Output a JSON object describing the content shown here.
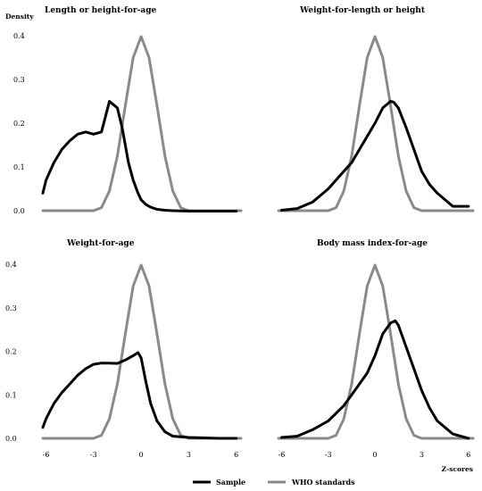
{
  "figure": {
    "density_label": "Density",
    "xaxis_label": "Z-scores"
  },
  "legend": [
    {
      "name": "Sample",
      "color": "#000000"
    },
    {
      "name": "WHO standards",
      "color": "#8a8a8a"
    }
  ],
  "chart_data": [
    {
      "type": "line",
      "title": "Length or height-for-age",
      "yticks": [
        "0.4",
        "0.3",
        "0.2",
        "0.1",
        "0.0"
      ],
      "xticks": [],
      "ylim": [
        0,
        0.4
      ],
      "xlim": [
        -6.2,
        6.3
      ],
      "series": [
        {
          "name": "Sample",
          "color": "#000000",
          "x": [
            -6.2,
            -6.0,
            -5.5,
            -5.0,
            -4.5,
            -4.0,
            -3.5,
            -3.0,
            -2.5,
            -2.0,
            -1.5,
            -1.2,
            -1.0,
            -0.8,
            -0.5,
            -0.2,
            0.0,
            0.3,
            0.6,
            1.0,
            1.5,
            2.0,
            3.0,
            4.0,
            5.0,
            6.0
          ],
          "y": [
            0.04,
            0.07,
            0.11,
            0.14,
            0.16,
            0.175,
            0.18,
            0.175,
            0.18,
            0.25,
            0.235,
            0.19,
            0.15,
            0.11,
            0.07,
            0.04,
            0.025,
            0.014,
            0.008,
            0.003,
            0.001,
            0.0,
            -0.001,
            -0.001,
            -0.001,
            -0.001
          ]
        },
        {
          "name": "WHO standards",
          "color": "#8a8a8a",
          "x": [
            -6.2,
            -3.0,
            -2.5,
            -2.0,
            -1.5,
            -1.0,
            -0.5,
            0.0,
            0.5,
            1.0,
            1.5,
            2.0,
            2.5,
            3.0,
            6.3
          ],
          "y": [
            0.0,
            0.0,
            0.007,
            0.045,
            0.125,
            0.24,
            0.35,
            0.398,
            0.35,
            0.24,
            0.125,
            0.045,
            0.007,
            0.0,
            0.0
          ]
        }
      ]
    },
    {
      "type": "line",
      "title": "Weight-for-length or height",
      "yticks": [],
      "xticks": [],
      "ylim": [
        0,
        0.4
      ],
      "xlim": [
        -6.2,
        6.3
      ],
      "series": [
        {
          "name": "Sample",
          "color": "#000000",
          "x": [
            -6.0,
            -5.0,
            -4.0,
            -3.0,
            -2.0,
            -1.5,
            -1.0,
            -0.5,
            0.0,
            0.5,
            1.0,
            1.2,
            1.5,
            2.0,
            2.5,
            3.0,
            3.5,
            4.0,
            5.0,
            6.0
          ],
          "y": [
            0.001,
            0.005,
            0.02,
            0.05,
            0.09,
            0.11,
            0.14,
            0.17,
            0.2,
            0.235,
            0.25,
            0.248,
            0.235,
            0.19,
            0.14,
            0.09,
            0.06,
            0.04,
            0.01,
            0.01
          ]
        },
        {
          "name": "WHO standards",
          "color": "#8a8a8a",
          "x": [
            -6.2,
            -3.0,
            -2.5,
            -2.0,
            -1.5,
            -1.0,
            -0.5,
            0.0,
            0.5,
            1.0,
            1.5,
            2.0,
            2.5,
            3.0,
            6.3
          ],
          "y": [
            0.0,
            0.0,
            0.007,
            0.045,
            0.125,
            0.24,
            0.35,
            0.398,
            0.35,
            0.24,
            0.125,
            0.045,
            0.007,
            0.0,
            0.0
          ]
        }
      ]
    },
    {
      "type": "line",
      "title": "Weight-for-age",
      "yticks": [
        "0.4",
        "0.3",
        "0.2",
        "0.1",
        "0.0"
      ],
      "xticks": [
        "-6",
        "-3",
        "0",
        "3",
        "6"
      ],
      "ylim": [
        0,
        0.4
      ],
      "xlim": [
        -6.2,
        6.3
      ],
      "series": [
        {
          "name": "Sample",
          "color": "#000000",
          "x": [
            -6.2,
            -6.0,
            -5.5,
            -5.0,
            -4.5,
            -4.0,
            -3.5,
            -3.0,
            -2.5,
            -2.0,
            -1.5,
            -1.0,
            -0.5,
            -0.2,
            0.0,
            0.3,
            0.6,
            1.0,
            1.5,
            2.0,
            3.0,
            4.0,
            5.0,
            6.0
          ],
          "y": [
            0.025,
            0.045,
            0.08,
            0.105,
            0.125,
            0.145,
            0.16,
            0.17,
            0.173,
            0.173,
            0.172,
            0.18,
            0.19,
            0.197,
            0.185,
            0.13,
            0.08,
            0.04,
            0.015,
            0.005,
            0.002,
            0.001,
            0.0,
            0.0
          ]
        },
        {
          "name": "WHO standards",
          "color": "#8a8a8a",
          "x": [
            -6.2,
            -3.0,
            -2.5,
            -2.0,
            -1.5,
            -1.0,
            -0.5,
            0.0,
            0.5,
            1.0,
            1.5,
            2.0,
            2.5,
            3.0,
            6.3
          ],
          "y": [
            0.0,
            0.0,
            0.007,
            0.045,
            0.125,
            0.24,
            0.35,
            0.398,
            0.35,
            0.24,
            0.125,
            0.045,
            0.007,
            0.0,
            0.0
          ]
        }
      ]
    },
    {
      "type": "line",
      "title": "Body mass index-for-age",
      "yticks": [],
      "xticks": [
        "-6",
        "-3",
        "0",
        "3",
        "6"
      ],
      "ylim": [
        0,
        0.4
      ],
      "xlim": [
        -6.2,
        6.3
      ],
      "series": [
        {
          "name": "Sample",
          "color": "#000000",
          "x": [
            -6.0,
            -5.0,
            -4.0,
            -3.0,
            -2.0,
            -1.5,
            -1.0,
            -0.5,
            0.0,
            0.5,
            1.0,
            1.3,
            1.5,
            2.0,
            2.5,
            3.0,
            3.5,
            4.0,
            5.0,
            6.0
          ],
          "y": [
            0.002,
            0.005,
            0.02,
            0.04,
            0.075,
            0.1,
            0.125,
            0.15,
            0.19,
            0.24,
            0.265,
            0.27,
            0.26,
            0.21,
            0.16,
            0.11,
            0.07,
            0.04,
            0.01,
            0.0
          ]
        },
        {
          "name": "WHO standards",
          "color": "#8a8a8a",
          "x": [
            -6.2,
            -3.0,
            -2.5,
            -2.0,
            -1.5,
            -1.0,
            -0.5,
            0.0,
            0.5,
            1.0,
            1.5,
            2.0,
            2.5,
            3.0,
            6.3
          ],
          "y": [
            0.0,
            0.0,
            0.007,
            0.045,
            0.125,
            0.24,
            0.35,
            0.398,
            0.35,
            0.24,
            0.125,
            0.045,
            0.007,
            0.0,
            0.0
          ]
        }
      ]
    }
  ]
}
